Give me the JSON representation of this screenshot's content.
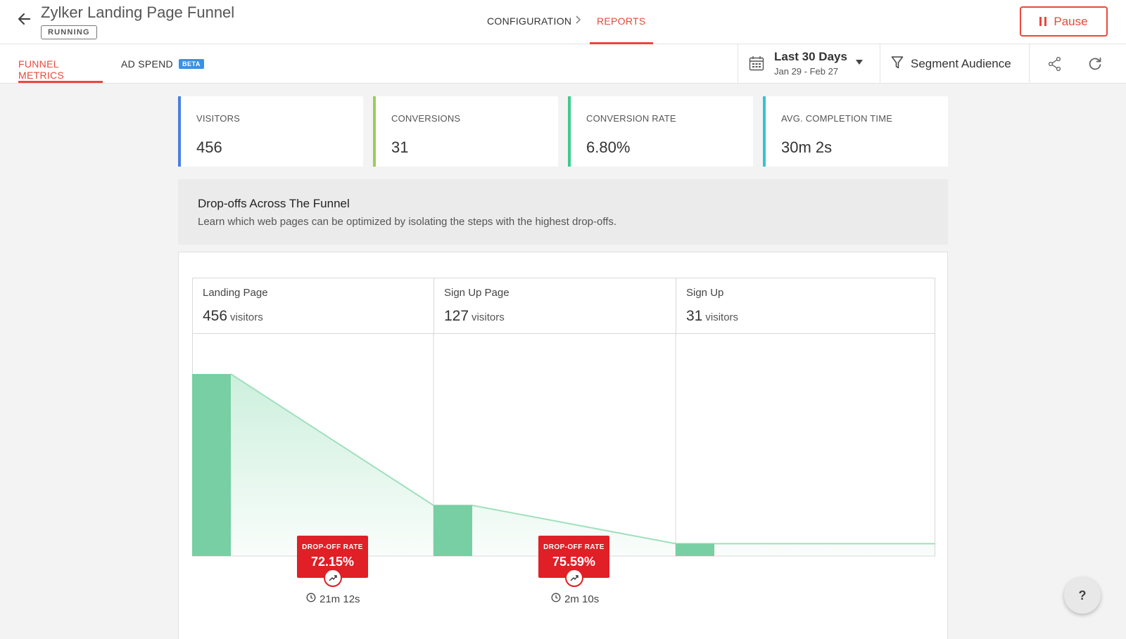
{
  "header": {
    "title": "Zylker Landing Page Funnel",
    "status": "RUNNING",
    "breadcrumb": {
      "configuration": "CONFIGURATION",
      "reports": "REPORTS"
    },
    "pause_label": "Pause"
  },
  "toolbar": {
    "tabs": [
      {
        "label": "FUNNEL METRICS",
        "active": true
      },
      {
        "label": "AD SPEND",
        "badge": "BETA",
        "active": false
      }
    ],
    "date_range": {
      "label": "Last 30 Days",
      "range": "Jan 29 - Feb 27"
    },
    "segment_label": "Segment Audience"
  },
  "metrics": [
    {
      "label": "VISITORS",
      "value": "456",
      "accent": "#4a7fe0"
    },
    {
      "label": "CONVERSIONS",
      "value": "31",
      "accent": "#9acd5a"
    },
    {
      "label": "CONVERSION RATE",
      "value": "6.80%",
      "accent": "#3ecb8c"
    },
    {
      "label": "AVG. COMPLETION TIME",
      "value": "30m 2s",
      "accent": "#36c2d4"
    }
  ],
  "info": {
    "title": "Drop-offs Across The Funnel",
    "description": "Learn which web pages can be optimized by isolating the steps with the highest drop-offs."
  },
  "funnel": {
    "visitors_unit": "visitors",
    "steps": [
      {
        "name": "Landing Page",
        "visitors": "456"
      },
      {
        "name": "Sign Up Page",
        "visitors": "127"
      },
      {
        "name": "Sign Up",
        "visitors": "31"
      }
    ],
    "dropoffs": [
      {
        "label": "DROP-OFF RATE",
        "rate": "72.15%",
        "time": "21m 12s"
      },
      {
        "label": "DROP-OFF RATE",
        "rate": "75.59%",
        "time": "2m 10s"
      }
    ],
    "colors": {
      "bar": "#77cfa3",
      "line": "#9fe0bd"
    }
  },
  "chart_data": {
    "type": "bar",
    "categories": [
      "Landing Page",
      "Sign Up Page",
      "Sign Up"
    ],
    "values": [
      456,
      127,
      31
    ]
  },
  "help_label": "?"
}
